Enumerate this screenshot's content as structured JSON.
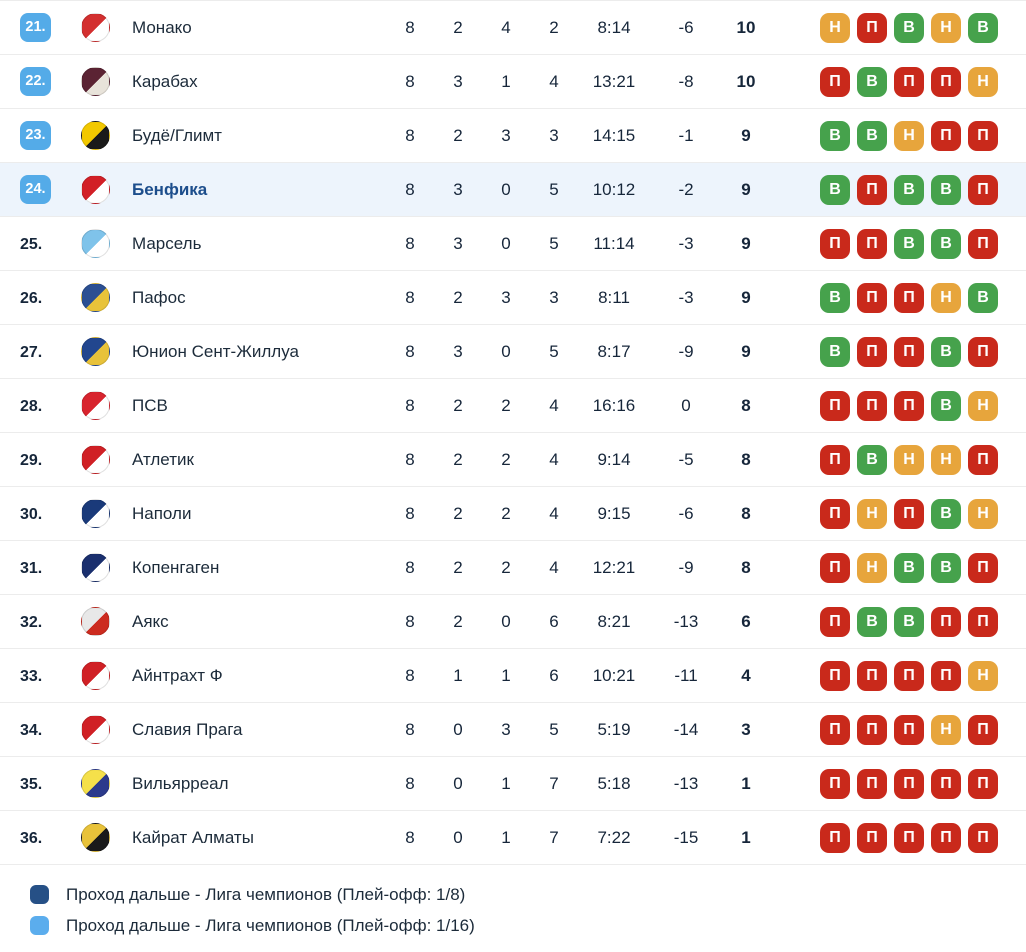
{
  "colors": {
    "position_badge_blue": "#54abe8",
    "highlight_row_bg": "#edf4fc",
    "highlight_team_text": "#1d4e8c",
    "row_divider": "#ececec",
    "form": {
      "В": "#46a24c",
      "Н": "#e7a53c",
      "П": "#c9291b"
    }
  },
  "table": {
    "rows": [
      {
        "pos": "21.",
        "zone_badge": true,
        "highlighted": false,
        "team": "Монако",
        "icon": "monaco-crest-icon",
        "logo": {
          "primary": "#d32f2f",
          "secondary": "#ffffff"
        },
        "played": "8",
        "wins": "2",
        "draws": "4",
        "losses": "2",
        "goals": "8:14",
        "diff": "-6",
        "points": "10",
        "form": [
          "Н",
          "П",
          "В",
          "Н",
          "В"
        ]
      },
      {
        "pos": "22.",
        "zone_badge": true,
        "highlighted": false,
        "team": "Карабах",
        "icon": "qarabag-crest-icon",
        "logo": {
          "primary": "#5b2333",
          "secondary": "#e8e3da"
        },
        "played": "8",
        "wins": "3",
        "draws": "1",
        "losses": "4",
        "goals": "13:21",
        "diff": "-8",
        "points": "10",
        "form": [
          "П",
          "В",
          "П",
          "П",
          "Н"
        ]
      },
      {
        "pos": "23.",
        "zone_badge": true,
        "highlighted": false,
        "team": "Будё/Глимт",
        "icon": "bodo-glimt-crest-icon",
        "logo": {
          "primary": "#f2c800",
          "secondary": "#1a1a1a"
        },
        "played": "8",
        "wins": "2",
        "draws": "3",
        "losses": "3",
        "goals": "14:15",
        "diff": "-1",
        "points": "9",
        "form": [
          "В",
          "В",
          "Н",
          "П",
          "П"
        ]
      },
      {
        "pos": "24.",
        "zone_badge": true,
        "highlighted": true,
        "team": "Бенфика",
        "icon": "benfica-crest-icon",
        "logo": {
          "primary": "#d21f26",
          "secondary": "#ffffff"
        },
        "played": "8",
        "wins": "3",
        "draws": "0",
        "losses": "5",
        "goals": "10:12",
        "diff": "-2",
        "points": "9",
        "form": [
          "В",
          "П",
          "В",
          "В",
          "П"
        ]
      },
      {
        "pos": "25.",
        "zone_badge": false,
        "highlighted": false,
        "team": "Марсель",
        "icon": "marseille-crest-icon",
        "logo": {
          "primary": "#7fc3ea",
          "secondary": "#ffffff"
        },
        "played": "8",
        "wins": "3",
        "draws": "0",
        "losses": "5",
        "goals": "11:14",
        "diff": "-3",
        "points": "9",
        "form": [
          "П",
          "П",
          "В",
          "В",
          "П"
        ]
      },
      {
        "pos": "26.",
        "zone_badge": false,
        "highlighted": false,
        "team": "Пафос",
        "icon": "pafos-crest-icon",
        "logo": {
          "primary": "#2b4f92",
          "secondary": "#e8c33a"
        },
        "played": "8",
        "wins": "2",
        "draws": "3",
        "losses": "3",
        "goals": "8:11",
        "diff": "-3",
        "points": "9",
        "form": [
          "В",
          "П",
          "П",
          "Н",
          "В"
        ]
      },
      {
        "pos": "27.",
        "zone_badge": false,
        "highlighted": false,
        "team": "Юнион Сент-Жиллуа",
        "icon": "union-sg-crest-icon",
        "logo": {
          "primary": "#22468e",
          "secondary": "#e8c23a"
        },
        "played": "8",
        "wins": "3",
        "draws": "0",
        "losses": "5",
        "goals": "8:17",
        "diff": "-9",
        "points": "9",
        "form": [
          "В",
          "П",
          "П",
          "В",
          "П"
        ]
      },
      {
        "pos": "28.",
        "zone_badge": false,
        "highlighted": false,
        "team": "ПСВ",
        "icon": "psv-crest-icon",
        "logo": {
          "primary": "#d8242e",
          "secondary": "#ffffff"
        },
        "played": "8",
        "wins": "2",
        "draws": "2",
        "losses": "4",
        "goals": "16:16",
        "diff": "0",
        "points": "8",
        "form": [
          "П",
          "П",
          "П",
          "В",
          "Н"
        ]
      },
      {
        "pos": "29.",
        "zone_badge": false,
        "highlighted": false,
        "team": "Атлетик",
        "icon": "athletic-crest-icon",
        "logo": {
          "primary": "#d02025",
          "secondary": "#ffffff"
        },
        "played": "8",
        "wins": "2",
        "draws": "2",
        "losses": "4",
        "goals": "9:14",
        "diff": "-5",
        "points": "8",
        "form": [
          "П",
          "В",
          "Н",
          "Н",
          "П"
        ]
      },
      {
        "pos": "30.",
        "zone_badge": false,
        "highlighted": false,
        "team": "Наполи",
        "icon": "napoli-crest-icon",
        "logo": {
          "primary": "#1a3a7a",
          "secondary": "#ffffff"
        },
        "played": "8",
        "wins": "2",
        "draws": "2",
        "losses": "4",
        "goals": "9:15",
        "diff": "-6",
        "points": "8",
        "form": [
          "П",
          "Н",
          "П",
          "В",
          "Н"
        ]
      },
      {
        "pos": "31.",
        "zone_badge": false,
        "highlighted": false,
        "team": "Копенгаген",
        "icon": "copenhagen-crest-icon",
        "logo": {
          "primary": "#1a2f6e",
          "secondary": "#ffffff"
        },
        "played": "8",
        "wins": "2",
        "draws": "2",
        "losses": "4",
        "goals": "12:21",
        "diff": "-9",
        "points": "8",
        "form": [
          "П",
          "Н",
          "В",
          "В",
          "П"
        ]
      },
      {
        "pos": "32.",
        "zone_badge": false,
        "highlighted": false,
        "team": "Аякс",
        "icon": "ajax-crest-icon",
        "logo": {
          "primary": "#e8e8e8",
          "secondary": "#cc2b1f"
        },
        "played": "8",
        "wins": "2",
        "draws": "0",
        "losses": "6",
        "goals": "8:21",
        "diff": "-13",
        "points": "6",
        "form": [
          "П",
          "В",
          "В",
          "П",
          "П"
        ]
      },
      {
        "pos": "33.",
        "zone_badge": false,
        "highlighted": false,
        "team": "Айнтрахт Ф",
        "icon": "eintracht-crest-icon",
        "logo": {
          "primary": "#d02025",
          "secondary": "#ffffff"
        },
        "played": "8",
        "wins": "1",
        "draws": "1",
        "losses": "6",
        "goals": "10:21",
        "diff": "-11",
        "points": "4",
        "form": [
          "П",
          "П",
          "П",
          "П",
          "Н"
        ]
      },
      {
        "pos": "34.",
        "zone_badge": false,
        "highlighted": false,
        "team": "Славия Прага",
        "icon": "slavia-praha-crest-icon",
        "logo": {
          "primary": "#d02025",
          "secondary": "#ffffff"
        },
        "played": "8",
        "wins": "0",
        "draws": "3",
        "losses": "5",
        "goals": "5:19",
        "diff": "-14",
        "points": "3",
        "form": [
          "П",
          "П",
          "П",
          "Н",
          "П"
        ]
      },
      {
        "pos": "35.",
        "zone_badge": false,
        "highlighted": false,
        "team": "Вильярреал",
        "icon": "villarreal-crest-icon",
        "logo": {
          "primary": "#f5e04a",
          "secondary": "#2b3a8c"
        },
        "played": "8",
        "wins": "0",
        "draws": "1",
        "losses": "7",
        "goals": "5:18",
        "diff": "-13",
        "points": "1",
        "form": [
          "П",
          "П",
          "П",
          "П",
          "П"
        ]
      },
      {
        "pos": "36.",
        "zone_badge": false,
        "highlighted": false,
        "team": "Кайрат Алматы",
        "icon": "kairat-crest-icon",
        "logo": {
          "primary": "#e8c23a",
          "secondary": "#1a1a1a"
        },
        "played": "8",
        "wins": "0",
        "draws": "1",
        "losses": "7",
        "goals": "7:22",
        "diff": "-15",
        "points": "1",
        "form": [
          "П",
          "П",
          "П",
          "П",
          "П"
        ]
      }
    ]
  },
  "legend": {
    "items": [
      {
        "color": "#265086",
        "label": "Проход дальше - Лига чемпионов (Плей-офф: 1/8)"
      },
      {
        "color": "#5baded",
        "label": "Проход дальше - Лига чемпионов (Плей-офф: 1/16)"
      }
    ]
  }
}
